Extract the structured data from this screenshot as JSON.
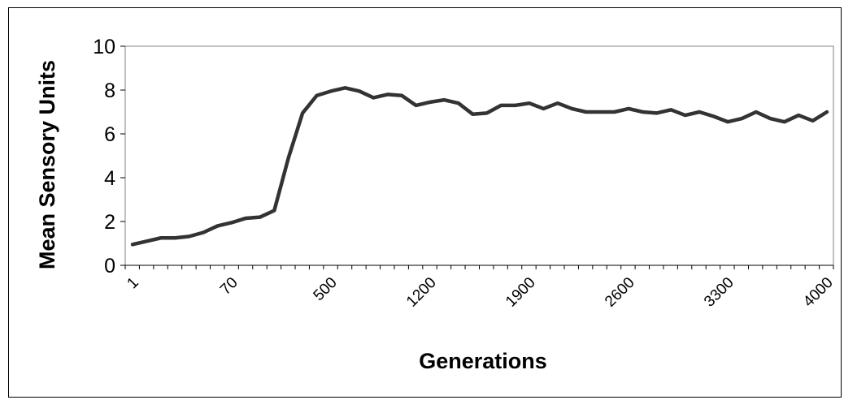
{
  "chart_data": {
    "type": "line",
    "title": "",
    "xlabel": "Generations",
    "ylabel": "Mean Sensory Units",
    "ylim": [
      0,
      10
    ],
    "y_ticks": [
      "0",
      "2",
      "4",
      "6",
      "8",
      "10"
    ],
    "x_tick_labels": [
      "1",
      "70",
      "500",
      "1200",
      "1900",
      "2600",
      "3300",
      "4000"
    ],
    "grid": false,
    "legend": "none",
    "series_color": "#333333",
    "series": [
      {
        "values": [
          0.95,
          1.1,
          1.25,
          1.25,
          1.32,
          1.5,
          1.8,
          1.95,
          2.15,
          2.2,
          2.5,
          4.9,
          6.95,
          7.75,
          7.95,
          8.1,
          7.95,
          7.65,
          7.8,
          7.75,
          7.3,
          7.45,
          7.55,
          7.4,
          6.9,
          6.95,
          7.3,
          7.3,
          7.4,
          7.15,
          7.4,
          7.15,
          7.0,
          7.0,
          7.0,
          7.15,
          7.0,
          6.95,
          7.1,
          6.85,
          7.0,
          6.8,
          6.55,
          6.7,
          7.0,
          6.7,
          6.55,
          6.85,
          6.6,
          7.0
        ]
      }
    ]
  }
}
